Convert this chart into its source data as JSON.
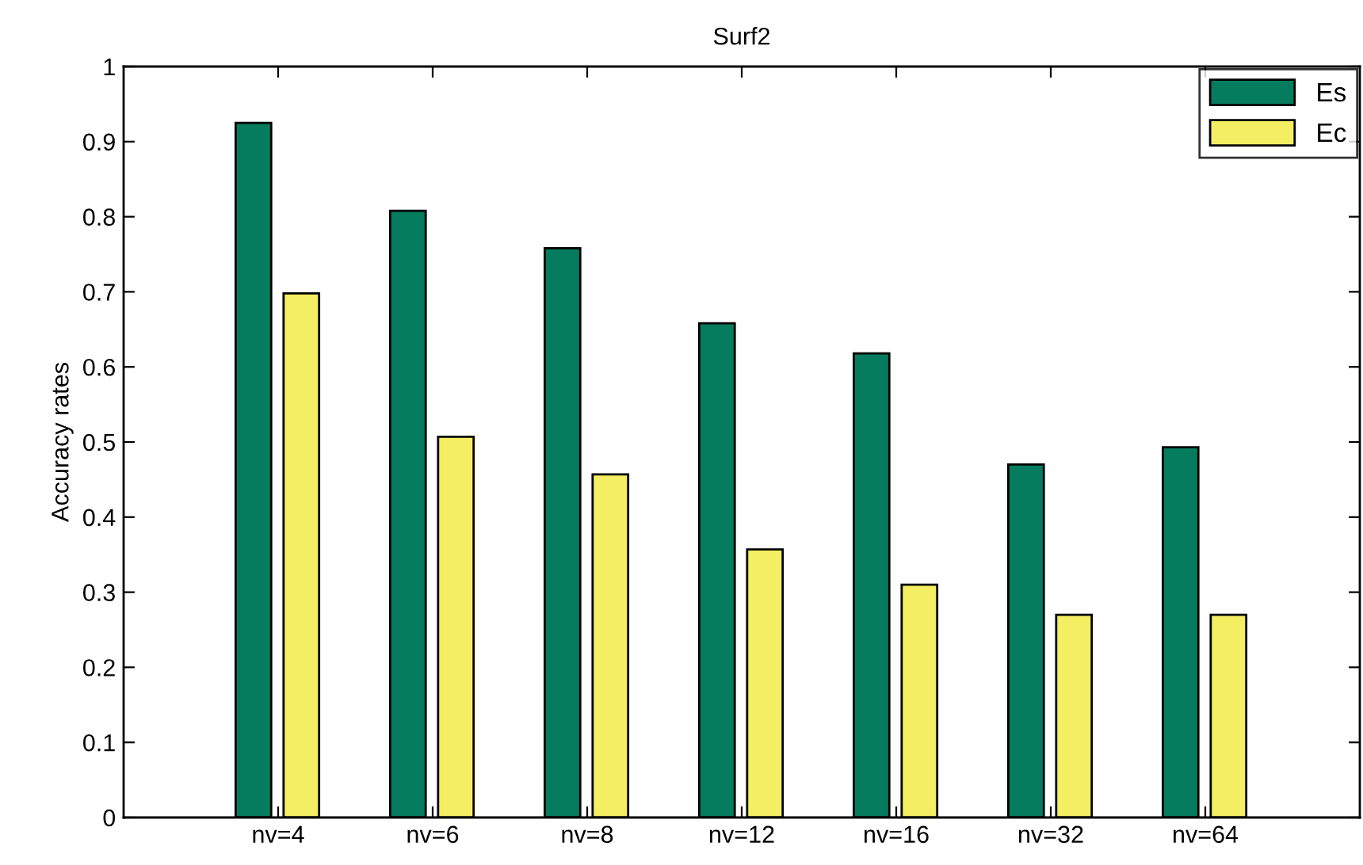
{
  "chart_data": {
    "type": "bar",
    "title": "Surf2",
    "ylabel": "Accuracy rates",
    "categories": [
      "nv=4",
      "nv=6",
      "nv=8",
      "nv=12",
      "nv=16",
      "nv=32",
      "nv=64"
    ],
    "series": [
      {
        "name": "Es",
        "color": "#067c5e",
        "values": [
          0.925,
          0.808,
          0.758,
          0.658,
          0.618,
          0.47,
          0.493
        ]
      },
      {
        "name": "Ec",
        "color": "#f4ee62",
        "values": [
          0.698,
          0.507,
          0.457,
          0.357,
          0.31,
          0.27,
          0.27
        ]
      }
    ],
    "ylim": [
      0,
      1
    ],
    "yticks": [
      0,
      0.1,
      0.2,
      0.3,
      0.4,
      0.5,
      0.6,
      0.7,
      0.8,
      0.9,
      1
    ],
    "grid": false,
    "legend": "top right"
  }
}
